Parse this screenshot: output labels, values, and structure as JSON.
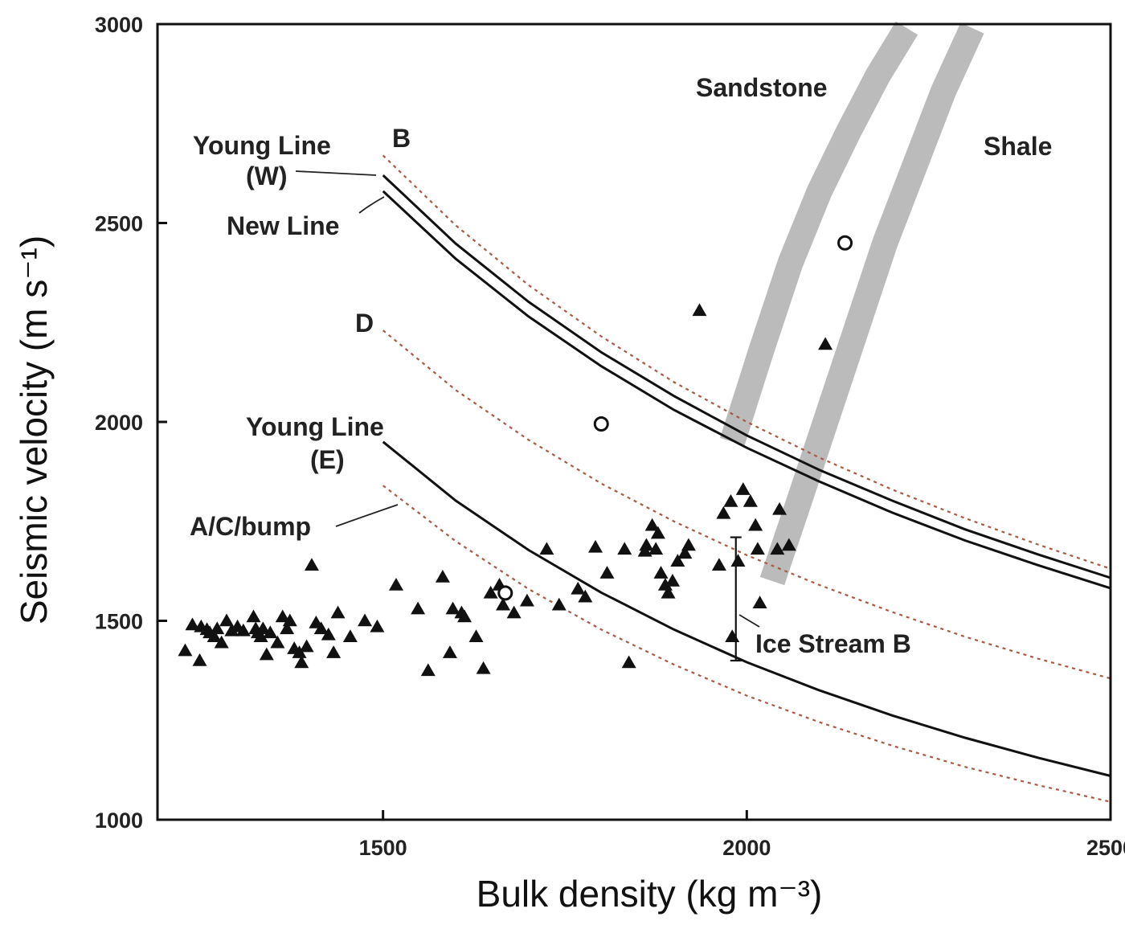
{
  "chart_data": {
    "type": "scatter",
    "xlabel": "Bulk density (kg m⁻³)",
    "ylabel": "Seismic velocity (m s⁻¹)",
    "xlim": [
      1190,
      2500
    ],
    "ylim": [
      1000,
      3000
    ],
    "xticks": [
      "1500",
      "2000",
      "2500"
    ],
    "yticks": [
      "1000",
      "1500",
      "2000",
      "2500",
      "3000"
    ],
    "grid": false,
    "annotations": [
      {
        "text": "Young Line",
        "role": "young-w-1"
      },
      {
        "text": "(W)",
        "role": "young-w-2"
      },
      {
        "text": "B",
        "role": "b"
      },
      {
        "text": "New Line",
        "role": "new"
      },
      {
        "text": "D",
        "role": "d"
      },
      {
        "text": "Young Line",
        "role": "young-e-1"
      },
      {
        "text": "(E)",
        "role": "young-e-2"
      },
      {
        "text": "A/C/bump",
        "role": "acbump"
      },
      {
        "text": "Sandstone",
        "role": "sandstone"
      },
      {
        "text": "Shale",
        "role": "shale"
      },
      {
        "text": "Ice Stream B",
        "role": "icestream"
      }
    ],
    "curves": [
      {
        "id": "young-w",
        "style": "solid",
        "x": [
          1500,
          1600,
          1700,
          1800,
          1900,
          2000,
          2100,
          2200,
          2300,
          2400,
          2500
        ],
        "y": [
          2620,
          2448,
          2302,
          2175,
          2065,
          1966,
          1879,
          1802,
          1730,
          1667,
          1608
        ]
      },
      {
        "id": "new-line",
        "style": "solid",
        "x": [
          1500,
          1600,
          1700,
          1800,
          1900,
          2000,
          2100,
          2200,
          2300,
          2400,
          2500
        ],
        "y": [
          2580,
          2410,
          2265,
          2140,
          2030,
          1935,
          1850,
          1772,
          1702,
          1640,
          1582
        ]
      },
      {
        "id": "b",
        "style": "dotted",
        "x": [
          1500,
          1600,
          1700,
          1800,
          1900,
          2000,
          2100,
          2200,
          2300,
          2400,
          2500
        ],
        "y": [
          2670,
          2494,
          2344,
          2215,
          2100,
          2000,
          1910,
          1830,
          1758,
          1692,
          1631
        ]
      },
      {
        "id": "d",
        "style": "dotted",
        "x": [
          1500,
          1600,
          1700,
          1800,
          1900,
          2000,
          2100,
          2200,
          2300,
          2400,
          2500
        ],
        "y": [
          2230,
          2080,
          1955,
          1845,
          1750,
          1665,
          1590,
          1522,
          1460,
          1405,
          1355
        ]
      },
      {
        "id": "young-e",
        "style": "solid",
        "x": [
          1500,
          1600,
          1700,
          1800,
          1900,
          2000,
          2100,
          2200,
          2300,
          2400,
          2500
        ],
        "y": [
          1950,
          1802,
          1678,
          1571,
          1478,
          1396,
          1325,
          1262,
          1206,
          1156,
          1110
        ]
      },
      {
        "id": "acbump",
        "style": "dotted",
        "x": [
          1500,
          1600,
          1700,
          1800,
          1900,
          2000,
          2100,
          2200,
          2300,
          2400,
          2500
        ],
        "y": [
          1840,
          1700,
          1580,
          1478,
          1390,
          1312,
          1245,
          1186,
          1133,
          1087,
          1045
        ]
      }
    ],
    "bands": [
      {
        "name": "Sandstone",
        "x": [
          1980,
          2020,
          2060,
          2100,
          2140,
          2180,
          2220
        ],
        "y": [
          1950,
          2180,
          2400,
          2580,
          2730,
          2870,
          2990
        ]
      },
      {
        "name": "Shale",
        "x": [
          2035,
          2070,
          2110,
          2150,
          2190,
          2230,
          2270,
          2310
        ],
        "y": [
          1600,
          1790,
          2010,
          2230,
          2450,
          2640,
          2830,
          2990
        ]
      }
    ],
    "series": [
      {
        "marker": "triangle-filled",
        "x": [
          1228,
          1238,
          1248,
          1250,
          1258,
          1262,
          1268,
          1272,
          1278,
          1285,
          1292,
          1300,
          1308,
          1322,
          1325,
          1328,
          1332,
          1335,
          1340,
          1345,
          1355,
          1362,
          1368,
          1372,
          1378,
          1385,
          1388,
          1395,
          1402,
          1408,
          1415,
          1425,
          1432,
          1438,
          1455,
          1475,
          1492,
          1518,
          1548,
          1562,
          1582,
          1592,
          1596,
          1608,
          1612,
          1628,
          1638,
          1648,
          1660,
          1665,
          1680,
          1698,
          1725,
          1742,
          1768,
          1778,
          1792,
          1808,
          1832,
          1838,
          1860,
          1862,
          1870,
          1875,
          1878,
          1882,
          1888,
          1892,
          1898,
          1905,
          1915,
          1920,
          1935,
          1962,
          1968,
          1978,
          1980,
          1988,
          1995,
          2005,
          2012,
          2015,
          2018,
          2042,
          2045,
          2058,
          2108
        ],
        "y": [
          1425,
          1490,
          1400,
          1485,
          1478,
          1470,
          1460,
          1480,
          1445,
          1500,
          1475,
          1485,
          1475,
          1510,
          1480,
          1470,
          1460,
          1480,
          1415,
          1470,
          1445,
          1510,
          1480,
          1500,
          1430,
          1420,
          1395,
          1435,
          1640,
          1495,
          1480,
          1465,
          1420,
          1520,
          1460,
          1500,
          1485,
          1590,
          1530,
          1375,
          1610,
          1420,
          1530,
          1520,
          1510,
          1460,
          1380,
          1570,
          1590,
          1540,
          1520,
          1550,
          1680,
          1540,
          1580,
          1560,
          1685,
          1620,
          1680,
          1395,
          1675,
          1690,
          1740,
          1680,
          1720,
          1620,
          1590,
          1570,
          1600,
          1650,
          1670,
          1690,
          2280,
          1640,
          1770,
          1800,
          1460,
          1650,
          1830,
          1800,
          1740,
          1680,
          1545,
          1680,
          1780,
          1690,
          2195
        ]
      },
      {
        "marker": "circle-open",
        "x": [
          1668,
          1800,
          2135
        ],
        "y": [
          1570,
          1995,
          2450
        ]
      }
    ],
    "errorbars": [
      {
        "x": 1985,
        "ymin": 1400,
        "ymax": 1710
      }
    ]
  }
}
